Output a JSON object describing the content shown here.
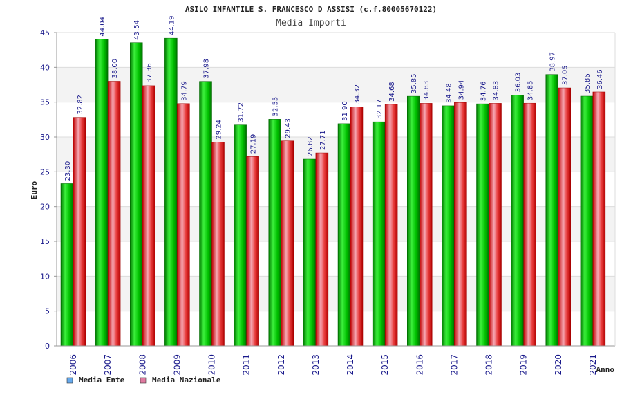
{
  "chart_data": {
    "type": "bar",
    "title": "ASILO INFANTILE S. FRANCESCO D ASSISI (c.f.80005670122)",
    "subtitle": "Media Importi",
    "xlabel": "Anno",
    "ylabel": "Euro",
    "ylim": [
      0,
      45
    ],
    "yticks": [
      0,
      5,
      10,
      15,
      20,
      25,
      30,
      35,
      40,
      45
    ],
    "grid": true,
    "legend_position": "bottom-left",
    "categories": [
      "2006",
      "2007",
      "2008",
      "2009",
      "2010",
      "2011",
      "2012",
      "2013",
      "2014",
      "2015",
      "2016",
      "2017",
      "2018",
      "2019",
      "2020",
      "2021"
    ],
    "series": [
      {
        "name": "Media Ente",
        "color": "#00b400",
        "legend_color": "#66aaee",
        "values": [
          23.3,
          44.04,
          43.54,
          44.19,
          37.98,
          31.72,
          32.55,
          26.82,
          31.9,
          32.17,
          35.85,
          34.48,
          34.76,
          36.03,
          38.97,
          35.86
        ],
        "labels": [
          "23.30",
          "44.04",
          "43.54",
          "44.19",
          "37.98",
          "31.72",
          "32.55",
          "26.82",
          "31.90",
          "32.17",
          "35.85",
          "34.48",
          "34.76",
          "36.03",
          "38.97",
          "35.86"
        ]
      },
      {
        "name": "Media Nazionale",
        "color": "#e01818",
        "legend_color": "#e07aa0",
        "values": [
          32.82,
          38.0,
          37.36,
          34.79,
          29.24,
          27.19,
          29.43,
          27.71,
          34.32,
          34.68,
          34.83,
          34.94,
          34.83,
          34.85,
          37.05,
          36.46
        ],
        "labels": [
          "32.82",
          "38.00",
          "37.36",
          "34.79",
          "29.24",
          "27.19",
          "29.43",
          "27.71",
          "34.32",
          "34.68",
          "34.83",
          "34.94",
          "34.83",
          "34.85",
          "37.05",
          "36.46"
        ]
      }
    ]
  }
}
